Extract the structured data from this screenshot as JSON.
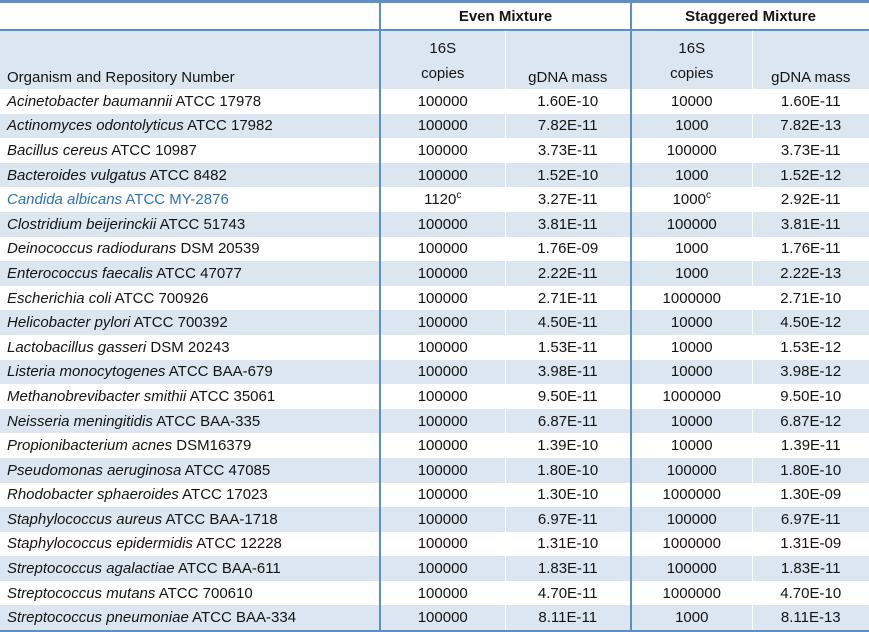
{
  "table": {
    "group_headers": {
      "even": "Even Mixture",
      "staggered": "Staggered Mixture"
    },
    "column_headers": {
      "organism": "Organism and Repository Number",
      "copies_line1": "16S",
      "copies_line2": "copies",
      "gdna": "gDNA mass"
    },
    "colors": {
      "border_blue": "#5b8fc7",
      "row_alt_fill": "#dce6f1",
      "highlight_text": "#2e74b5"
    },
    "rows": [
      {
        "species": "Acinetobacter baumannii",
        "strain": "ATCC 17978",
        "even_copies": "100000",
        "even_copies_sup": "",
        "even_mass": "1.60E-10",
        "stag_copies": "10000",
        "stag_copies_sup": "",
        "stag_mass": "1.60E-11",
        "highlight": false
      },
      {
        "species": "Actinomyces odontolyticus",
        "strain": "ATCC 17982",
        "even_copies": "100000",
        "even_copies_sup": "",
        "even_mass": "7.82E-11",
        "stag_copies": "1000",
        "stag_copies_sup": "",
        "stag_mass": "7.82E-13",
        "highlight": false
      },
      {
        "species": "Bacillus cereus",
        "strain": "ATCC 10987",
        "even_copies": "100000",
        "even_copies_sup": "",
        "even_mass": "3.73E-11",
        "stag_copies": "100000",
        "stag_copies_sup": "",
        "stag_mass": "3.73E-11",
        "highlight": false
      },
      {
        "species": "Bacteroides vulgatus",
        "strain": "ATCC 8482",
        "even_copies": "100000",
        "even_copies_sup": "",
        "even_mass": "1.52E-10",
        "stag_copies": "1000",
        "stag_copies_sup": "",
        "stag_mass": "1.52E-12",
        "highlight": false
      },
      {
        "species": "Candida albicans",
        "strain": "ATCC MY-2876",
        "even_copies": "1120",
        "even_copies_sup": "c",
        "even_mass": "3.27E-11",
        "stag_copies": "1000",
        "stag_copies_sup": "c",
        "stag_mass": "2.92E-11",
        "highlight": true
      },
      {
        "species": "Clostridium beijerinckii",
        "strain": "ATCC 51743",
        "even_copies": "100000",
        "even_copies_sup": "",
        "even_mass": "3.81E-11",
        "stag_copies": "100000",
        "stag_copies_sup": "",
        "stag_mass": "3.81E-11",
        "highlight": false
      },
      {
        "species": "Deinococcus radiodurans",
        "strain": "DSM 20539",
        "even_copies": "100000",
        "even_copies_sup": "",
        "even_mass": "1.76E-09",
        "stag_copies": "1000",
        "stag_copies_sup": "",
        "stag_mass": "1.76E-11",
        "highlight": false
      },
      {
        "species": "Enterococcus faecalis",
        "strain": "ATCC 47077",
        "even_copies": "100000",
        "even_copies_sup": "",
        "even_mass": "2.22E-11",
        "stag_copies": "1000",
        "stag_copies_sup": "",
        "stag_mass": "2.22E-13",
        "highlight": false
      },
      {
        "species": "Escherichia coli",
        "strain": "ATCC 700926",
        "even_copies": "100000",
        "even_copies_sup": "",
        "even_mass": "2.71E-11",
        "stag_copies": "1000000",
        "stag_copies_sup": "",
        "stag_mass": "2.71E-10",
        "highlight": false
      },
      {
        "species": "Helicobacter pylori",
        "strain": "ATCC 700392",
        "even_copies": "100000",
        "even_copies_sup": "",
        "even_mass": "4.50E-11",
        "stag_copies": "10000",
        "stag_copies_sup": "",
        "stag_mass": "4.50E-12",
        "highlight": false
      },
      {
        "species": "Lactobacillus gasseri",
        "strain": "DSM 20243",
        "even_copies": "100000",
        "even_copies_sup": "",
        "even_mass": "1.53E-11",
        "stag_copies": "10000",
        "stag_copies_sup": "",
        "stag_mass": "1.53E-12",
        "highlight": false
      },
      {
        "species": "Listeria monocytogenes",
        "strain": "ATCC BAA-679",
        "even_copies": "100000",
        "even_copies_sup": "",
        "even_mass": "3.98E-11",
        "stag_copies": "10000",
        "stag_copies_sup": "",
        "stag_mass": "3.98E-12",
        "highlight": false
      },
      {
        "species": "Methanobrevibacter smithii",
        "strain": "ATCC 35061",
        "even_copies": "100000",
        "even_copies_sup": "",
        "even_mass": "9.50E-11",
        "stag_copies": "1000000",
        "stag_copies_sup": "",
        "stag_mass": "9.50E-10",
        "highlight": false
      },
      {
        "species": "Neisseria meningitidis",
        "strain": "ATCC BAA-335",
        "even_copies": "100000",
        "even_copies_sup": "",
        "even_mass": "6.87E-11",
        "stag_copies": "10000",
        "stag_copies_sup": "",
        "stag_mass": "6.87E-12",
        "highlight": false
      },
      {
        "species": "Propionibacterium acnes",
        "strain": "DSM16379",
        "even_copies": "100000",
        "even_copies_sup": "",
        "even_mass": "1.39E-10",
        "stag_copies": "10000",
        "stag_copies_sup": "",
        "stag_mass": "1.39E-11",
        "highlight": false
      },
      {
        "species": "Pseudomonas aeruginosa",
        "strain": "ATCC 47085",
        "even_copies": "100000",
        "even_copies_sup": "",
        "even_mass": "1.80E-10",
        "stag_copies": "100000",
        "stag_copies_sup": "",
        "stag_mass": "1.80E-10",
        "highlight": false
      },
      {
        "species": "Rhodobacter sphaeroides",
        "strain": "ATCC 17023",
        "even_copies": "100000",
        "even_copies_sup": "",
        "even_mass": "1.30E-10",
        "stag_copies": "1000000",
        "stag_copies_sup": "",
        "stag_mass": "1.30E-09",
        "highlight": false
      },
      {
        "species": "Staphylococcus aureus",
        "strain": "ATCC BAA-1718",
        "even_copies": "100000",
        "even_copies_sup": "",
        "even_mass": "6.97E-11",
        "stag_copies": "100000",
        "stag_copies_sup": "",
        "stag_mass": "6.97E-11",
        "highlight": false
      },
      {
        "species": "Staphylococcus epidermidis",
        "strain": "ATCC 12228",
        "even_copies": "100000",
        "even_copies_sup": "",
        "even_mass": "1.31E-10",
        "stag_copies": "1000000",
        "stag_copies_sup": "",
        "stag_mass": "1.31E-09",
        "highlight": false
      },
      {
        "species": "Streptococcus agalactiae",
        "strain": "ATCC BAA-611",
        "even_copies": "100000",
        "even_copies_sup": "",
        "even_mass": "1.83E-11",
        "stag_copies": "100000",
        "stag_copies_sup": "",
        "stag_mass": "1.83E-11",
        "highlight": false
      },
      {
        "species": "Streptococcus mutans",
        "strain": "ATCC 700610",
        "even_copies": "100000",
        "even_copies_sup": "",
        "even_mass": "4.70E-11",
        "stag_copies": "1000000",
        "stag_copies_sup": "",
        "stag_mass": "4.70E-10",
        "highlight": false
      },
      {
        "species": "Streptococcus pneumoniae",
        "strain": "ATCC BAA-334",
        "even_copies": "100000",
        "even_copies_sup": "",
        "even_mass": "8.11E-11",
        "stag_copies": "1000",
        "stag_copies_sup": "",
        "stag_mass": "8.11E-13",
        "highlight": false
      }
    ]
  }
}
